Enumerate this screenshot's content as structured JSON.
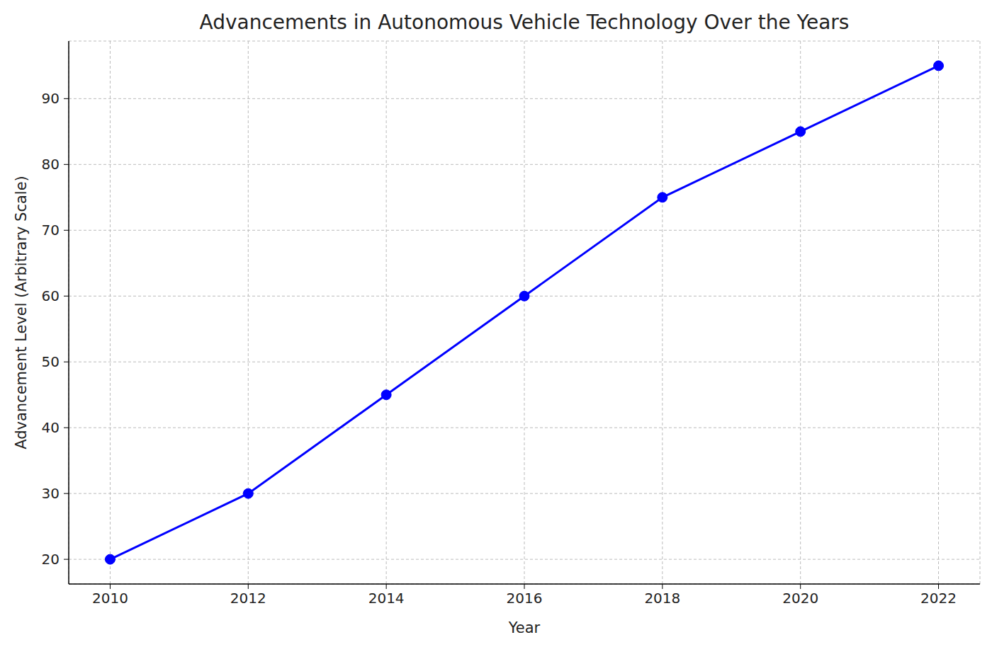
{
  "chart_data": {
    "type": "line",
    "title": "Advancements in Autonomous Vehicle Technology Over the Years",
    "x_label": "Year",
    "y_label": "Advancement Level (Arbitrary Scale)",
    "x": [
      2010,
      2012,
      2014,
      2016,
      2018,
      2020,
      2022
    ],
    "values": [
      20,
      30,
      45,
      60,
      75,
      85,
      95
    ],
    "color": "#0000ff",
    "marker": "circle",
    "line_style": "solid",
    "xlim": [
      2009.4,
      2022.6
    ],
    "ylim": [
      16.25,
      98.75
    ],
    "xticks": [
      2010,
      2012,
      2014,
      2016,
      2018,
      2020,
      2022
    ],
    "yticks": [
      20,
      30,
      40,
      50,
      60,
      70,
      80,
      90
    ],
    "grid": true
  }
}
